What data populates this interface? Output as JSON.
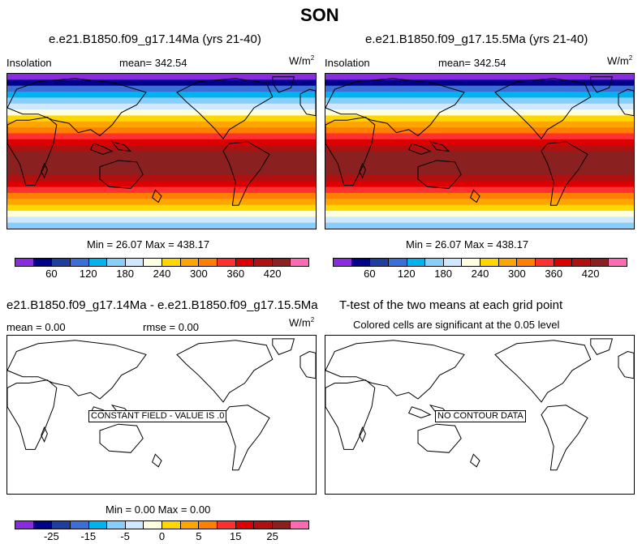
{
  "title": "SON",
  "panels": [
    {
      "case": "e.e21.B1850.f09_g17.14Ma (yrs 21-40)",
      "variable": "Insolation",
      "mean_label": "mean= 342.54",
      "units": "W/m",
      "units_exp": "2",
      "minmax": "Min =  26.07 Max = 438.17"
    },
    {
      "case": "e.e21.B1850.f09_g17.15.5Ma (yrs 21-40)",
      "variable": "Insolation",
      "mean_label": "mean= 342.54",
      "units": "W/m",
      "units_exp": "2",
      "minmax": "Min =  26.07 Max = 438.17"
    },
    {
      "case": "e21.B1850.f09_g17.14Ma - e.e21.B1850.f09_g17.15.5Ma",
      "mean_label": "mean =   0.00",
      "rmse_label": "rmse =   0.00",
      "units": "W/m",
      "units_exp": "2",
      "note": "CONSTANT FIELD - VALUE IS .0",
      "minmax": "Min =   0.00 Max =   0.00"
    },
    {
      "case": "T-test of the two means at each grid point",
      "subtitle": "Colored cells are significant at the 0.05 level",
      "note": "NO CONTOUR DATA"
    }
  ],
  "colorbar_top": {
    "colors": [
      "#8a2be2",
      "#00008b",
      "#1e3fa0",
      "#3a6fd8",
      "#00b2ee",
      "#87cefa",
      "#cfe8ff",
      "#ffffe0",
      "#ffd700",
      "#ffa500",
      "#ff7f00",
      "#ff3030",
      "#dd0000",
      "#b01010",
      "#8b2020",
      "#ff69b4"
    ],
    "labels": [
      "60",
      "120",
      "180",
      "240",
      "300",
      "360",
      "420"
    ]
  },
  "colorbar_bottom": {
    "colors": [
      "#8a2be2",
      "#00008b",
      "#1e3fa0",
      "#3a6fd8",
      "#00b2ee",
      "#87cefa",
      "#cfe8ff",
      "#ffffe0",
      "#ffd700",
      "#ffa500",
      "#ff7f00",
      "#ff3030",
      "#dd0000",
      "#b01010",
      "#8b2020",
      "#ff69b4"
    ],
    "labels": [
      "-25",
      "-15",
      "-5",
      "0",
      "5",
      "15",
      "25"
    ]
  },
  "insolation_bands": [
    "#8a2be2",
    "#00008b",
    "#3a6fd8",
    "#00b2ee",
    "#87cefa",
    "#cfe8ff",
    "#ffffe0",
    "#ffd700",
    "#ffa500",
    "#ff7f00",
    "#ff3030",
    "#dd0000",
    "#b01010",
    "#8b2020",
    "#8b2020",
    "#8b2020",
    "#8b2020",
    "#b01010",
    "#dd0000",
    "#ff3030",
    "#ff7f00",
    "#ffa500",
    "#ffd700",
    "#ffffe0",
    "#cfe8ff",
    "#87cefa"
  ]
}
